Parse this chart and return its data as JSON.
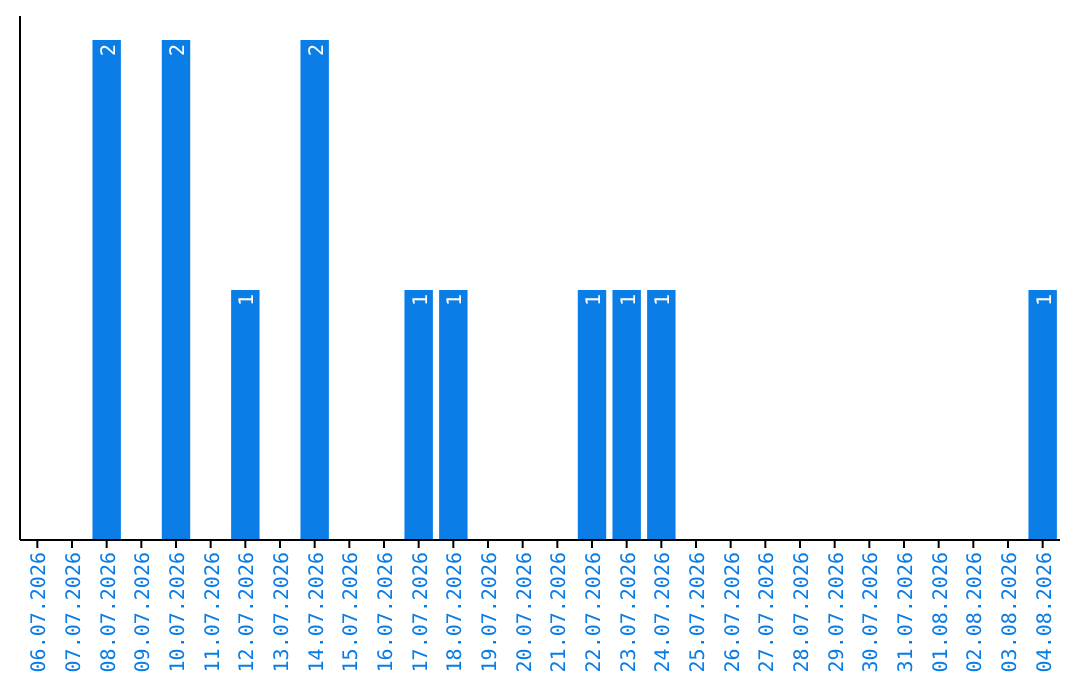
{
  "chart_data": {
    "type": "bar",
    "categories": [
      "06.07.2026",
      "07.07.2026",
      "08.07.2026",
      "09.07.2026",
      "10.07.2026",
      "11.07.2026",
      "12.07.2026",
      "13.07.2026",
      "14.07.2026",
      "15.07.2026",
      "16.07.2026",
      "17.07.2026",
      "18.07.2026",
      "19.07.2026",
      "20.07.2026",
      "21.07.2026",
      "22.07.2026",
      "23.07.2026",
      "24.07.2026",
      "25.07.2026",
      "26.07.2026",
      "27.07.2026",
      "28.07.2026",
      "29.07.2026",
      "30.07.2026",
      "31.07.2026",
      "01.08.2026",
      "02.08.2026",
      "03.08.2026",
      "04.08.2026"
    ],
    "values": [
      0,
      0,
      2,
      0,
      2,
      0,
      1,
      0,
      2,
      0,
      0,
      1,
      1,
      0,
      0,
      0,
      1,
      1,
      1,
      0,
      0,
      0,
      0,
      0,
      0,
      0,
      0,
      0,
      0,
      1
    ],
    "value_labels": [
      null,
      null,
      "2",
      null,
      "2",
      null,
      "1",
      null,
      "2",
      null,
      null,
      "1",
      "1",
      null,
      null,
      null,
      "1",
      "1",
      "1",
      null,
      null,
      null,
      null,
      null,
      null,
      null,
      null,
      null,
      null,
      "1"
    ],
    "color": "#0a7de6",
    "grid": false
  }
}
